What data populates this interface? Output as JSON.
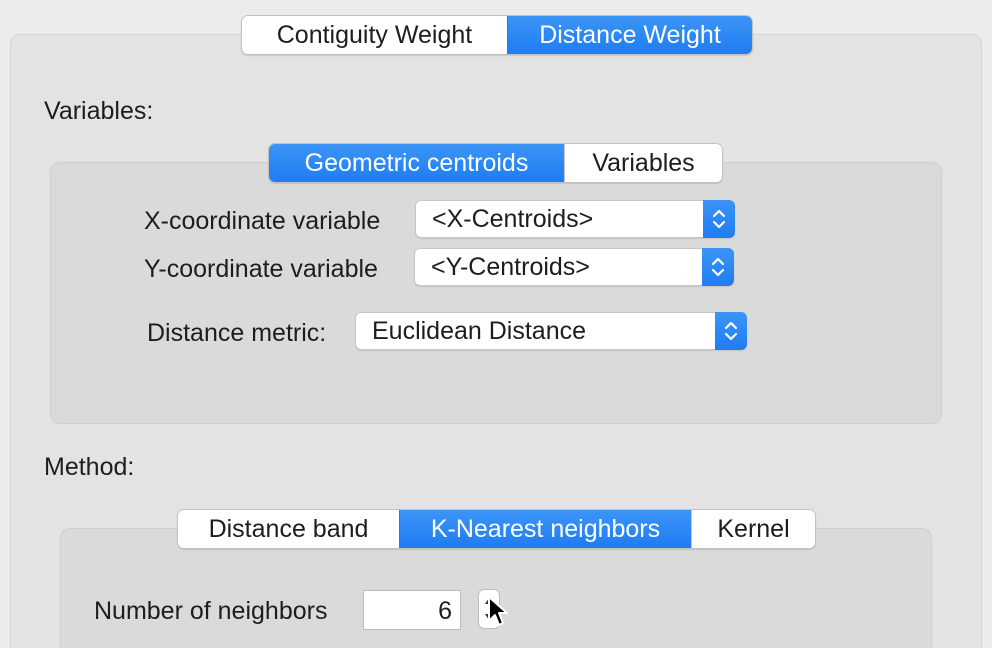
{
  "top_tabs": {
    "items": [
      {
        "label": "Contiguity Weight",
        "active": false
      },
      {
        "label": "Distance Weight",
        "active": true
      }
    ]
  },
  "variables_section": {
    "heading": "Variables:",
    "tabs": [
      {
        "label": "Geometric centroids",
        "active": true
      },
      {
        "label": "Variables",
        "active": false
      }
    ],
    "x_coordinate": {
      "label": "X-coordinate variable",
      "value": "<X-Centroids>"
    },
    "y_coordinate": {
      "label": "Y-coordinate variable",
      "value": "<Y-Centroids>"
    },
    "distance_metric": {
      "label": "Distance metric:",
      "value": "Euclidean Distance"
    }
  },
  "method_section": {
    "heading": "Method:",
    "tabs": [
      {
        "label": "Distance band",
        "active": false
      },
      {
        "label": "K-Nearest neighbors",
        "active": true
      },
      {
        "label": "Kernel",
        "active": false
      }
    ],
    "neighbors": {
      "label": "Number of neighbors",
      "value": "6"
    }
  },
  "colors": {
    "accent": "#1f7cf2",
    "panel": "#e3e3e3",
    "background": "#ececec"
  },
  "icons": {
    "select_stepper": "up-down-chevron-icon",
    "number_stepper": "up-down-arrow-icon",
    "cursor": "mouse-pointer-icon"
  }
}
